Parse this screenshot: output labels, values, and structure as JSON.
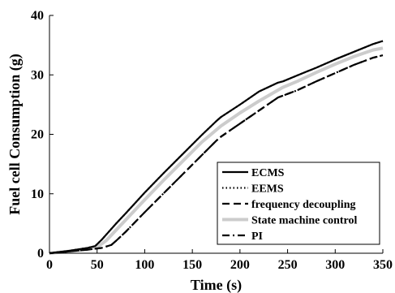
{
  "chart_data": {
    "type": "line",
    "title": "",
    "xlabel": "Time (s)",
    "ylabel": "Fuel cell Consumption (g)",
    "xlim": [
      0,
      350
    ],
    "ylim": [
      0,
      40
    ],
    "xticks": [
      0,
      50,
      100,
      150,
      200,
      250,
      300,
      350
    ],
    "yticks": [
      0,
      10,
      20,
      30,
      40
    ],
    "grid": false,
    "legend_position": "bottom-right",
    "series": [
      {
        "name": "ECMS",
        "color": "#000000",
        "style": "solid",
        "x": [
          0,
          20,
          40,
          48,
          55,
          60,
          70,
          80,
          100,
          120,
          140,
          160,
          175,
          180,
          200,
          220,
          240,
          245,
          260,
          280,
          300,
          320,
          340,
          350
        ],
        "y": [
          0,
          0.4,
          0.9,
          1.2,
          2.3,
          3.2,
          5.0,
          6.7,
          10.2,
          13.5,
          16.7,
          19.9,
          22.2,
          22.9,
          25.0,
          27.2,
          28.7,
          28.9,
          29.9,
          31.2,
          32.6,
          33.9,
          35.2,
          35.7
        ]
      },
      {
        "name": "EEMS",
        "color": "#000000",
        "style": "dotted",
        "x": [
          0,
          20,
          40,
          48,
          55,
          60,
          70,
          80,
          100,
          120,
          140,
          160,
          175,
          180,
          200,
          220,
          240,
          245,
          260,
          280,
          300,
          320,
          340,
          350
        ],
        "y": [
          0,
          0.4,
          0.9,
          1.2,
          2.3,
          3.2,
          5.0,
          6.7,
          10.2,
          13.5,
          16.7,
          19.9,
          22.2,
          22.9,
          25.0,
          27.2,
          28.7,
          28.9,
          29.9,
          31.2,
          32.6,
          33.9,
          35.2,
          35.7
        ]
      },
      {
        "name": "frequency decoupling",
        "color": "#000000",
        "style": "dashed",
        "x": [
          0,
          20,
          40,
          55,
          65,
          70,
          80,
          100,
          120,
          140,
          160,
          175,
          180,
          200,
          220,
          240,
          250,
          260,
          280,
          300,
          320,
          340,
          350
        ],
        "y": [
          0,
          0.3,
          0.6,
          0.9,
          1.4,
          2.1,
          3.6,
          6.9,
          10.1,
          13.3,
          16.5,
          18.9,
          19.6,
          21.8,
          24.0,
          26.2,
          26.8,
          27.4,
          28.9,
          30.3,
          31.7,
          32.9,
          33.3
        ]
      },
      {
        "name": "State machine control",
        "color": "#cccccc",
        "style": "solid",
        "x": [
          0,
          20,
          40,
          50,
          60,
          70,
          80,
          100,
          120,
          140,
          160,
          180,
          200,
          220,
          245,
          260,
          280,
          300,
          320,
          340,
          350
        ],
        "y": [
          0,
          0.3,
          0.7,
          1.0,
          2.2,
          3.9,
          5.6,
          9.0,
          12.3,
          15.5,
          18.7,
          21.4,
          23.6,
          25.6,
          27.9,
          28.9,
          30.4,
          31.8,
          33.1,
          34.2,
          34.5
        ]
      },
      {
        "name": "PI",
        "color": "#000000",
        "style": "dashdot",
        "x": [
          0,
          20,
          40,
          55,
          65,
          70,
          80,
          100,
          120,
          140,
          160,
          175,
          180,
          200,
          220,
          240,
          250,
          260,
          280,
          300,
          320,
          340,
          350
        ],
        "y": [
          0,
          0.3,
          0.6,
          0.9,
          1.4,
          2.1,
          3.6,
          6.9,
          10.1,
          13.3,
          16.5,
          18.9,
          19.6,
          21.8,
          24.0,
          26.2,
          26.8,
          27.4,
          28.9,
          30.3,
          31.7,
          32.9,
          33.3
        ]
      }
    ]
  }
}
